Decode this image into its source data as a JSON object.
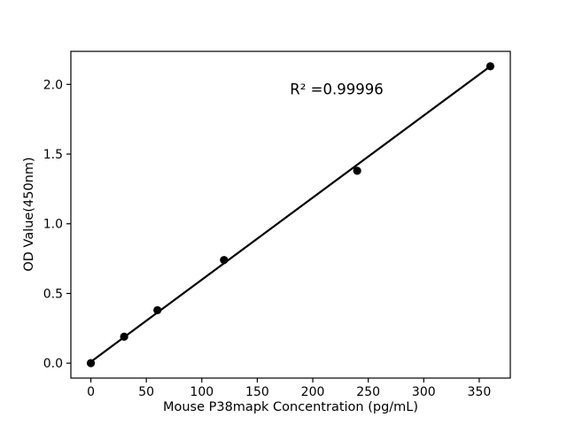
{
  "chart_data": {
    "type": "scatter",
    "title": "",
    "xlabel": "Mouse P38mapk Concentration (pg/mL)",
    "ylabel": "OD Value(450nm)",
    "annotation": "R² =0.99996",
    "x": [
      0,
      30,
      60,
      120,
      240,
      360
    ],
    "y": [
      0.0,
      0.19,
      0.38,
      0.74,
      1.38,
      2.13
    ],
    "fit_line": {
      "x0": 0,
      "y0": 0.01,
      "x1": 360,
      "y1": 2.13
    },
    "xticks": {
      "values": [
        0,
        50,
        100,
        150,
        200,
        250,
        300,
        350
      ],
      "labels": [
        "0",
        "50",
        "100",
        "150",
        "200",
        "250",
        "300",
        "350"
      ]
    },
    "yticks": {
      "values": [
        0.0,
        0.5,
        1.0,
        1.5,
        2.0
      ],
      "labels": [
        "0.0",
        "0.5",
        "1.0",
        "1.5",
        "2.0"
      ]
    },
    "xlim": [
      -18,
      378
    ],
    "ylim": [
      -0.107,
      2.237
    ],
    "grid": false,
    "legend": false,
    "colors": {
      "marker": "#000000",
      "line": "#000000",
      "axis": "#000000",
      "background": "#ffffff"
    }
  }
}
